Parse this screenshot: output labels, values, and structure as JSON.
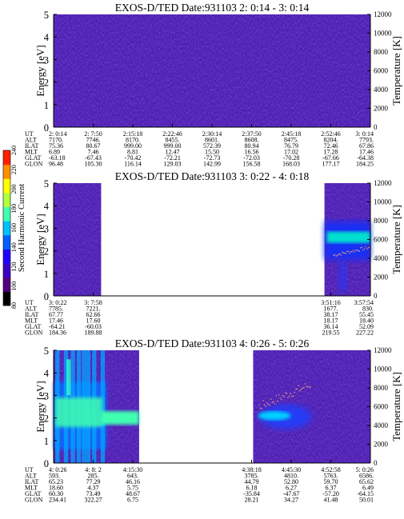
{
  "panels": [
    {
      "title": "EXOS-D/TED   Date:931103  2: 0:14 - 3: 0:14",
      "ylabel_left": "Energy [eV]",
      "ylabel_right": "Temperature [K]",
      "left_ticks": [
        "0",
        "1",
        "2",
        "3",
        "4",
        "5"
      ],
      "right_ticks": [
        "0",
        "2000",
        "4000",
        "6000",
        "8000",
        "10000",
        "12000"
      ],
      "eph_labels": [
        "UT",
        "ALT",
        "ILAT",
        "MLT",
        "GLAT",
        "GLON"
      ],
      "columns": [
        {
          "f": 0.0,
          "vals": [
            "2: 0:14",
            "7170.",
            "75.36",
            "6.89",
            "-63.18",
            "96.48"
          ]
        },
        {
          "f": 0.125,
          "vals": [
            "2: 7:50",
            "7746.",
            "80.67",
            "7.46",
            "-67.43",
            "105.30"
          ]
        },
        {
          "f": 0.25,
          "vals": [
            "2:15:18",
            "8170.",
            "999.00",
            "8.81",
            "-70.42",
            "116.14"
          ]
        },
        {
          "f": 0.375,
          "vals": [
            "2:22:46",
            "8455.",
            "999.00",
            "12.47",
            "-72.21",
            "129.03"
          ]
        },
        {
          "f": 0.5,
          "vals": [
            "2:30:14",
            "8601.",
            "572.39",
            "15.50",
            "-72.73",
            "142.99"
          ]
        },
        {
          "f": 0.625,
          "vals": [
            "2:37:50",
            "8608.",
            "80.94",
            "16.56",
            "-72.03",
            "156.58"
          ]
        },
        {
          "f": 0.75,
          "vals": [
            "2:45:18",
            "8475.",
            "76.79",
            "17.02",
            "-70.28",
            "168.03"
          ]
        },
        {
          "f": 0.875,
          "vals": [
            "2:52:46",
            "8204.",
            "72.46",
            "17.28",
            "-67.66",
            "177.17"
          ]
        },
        {
          "f": 1.0,
          "vals": [
            "3: 0:14",
            "7793.",
            "67.86",
            "17.46",
            "-64.38",
            "184.25"
          ]
        }
      ],
      "data_segments": [
        {
          "start": 0.0,
          "end": 1.0,
          "style": "background"
        }
      ]
    },
    {
      "title": "EXOS-D/TED   Date:931103  3: 0:22 - 4: 0:18",
      "ylabel_left": "Energy [eV]",
      "ylabel_right": "Temperature [K]",
      "left_ticks": [
        "0",
        "1",
        "2",
        "3",
        "4",
        "5"
      ],
      "right_ticks": [
        "0",
        "2000",
        "4000",
        "6000",
        "8000",
        "10000",
        "12000"
      ],
      "eph_labels": [
        "UT",
        "ALT",
        "ILAT",
        "MLT",
        "GLAT",
        "GLON"
      ],
      "columns": [
        {
          "f": 0.0,
          "vals": [
            "3: 0:22",
            "7785.",
            "67.77",
            "17.46",
            "-64.21",
            "184.36"
          ]
        },
        {
          "f": 0.125,
          "vals": [
            "3: 7:58",
            "7221.",
            "62.66",
            "17.60",
            "-60.03",
            "189.88"
          ]
        },
        {
          "f": 0.875,
          "vals": [
            "3:51:16",
            "1677.",
            "38.17",
            "18.17",
            "36.14",
            "219.55"
          ]
        },
        {
          "f": 1.0,
          "vals": [
            "3:57:54",
            "830.",
            "55.45",
            "18.40",
            "52.09",
            "227.22"
          ]
        }
      ],
      "data_segments": [
        {
          "start": 0.0,
          "end": 0.15,
          "style": "background"
        },
        {
          "start": 0.855,
          "end": 1.0,
          "style": "band"
        }
      ]
    },
    {
      "title": "EXOS-D/TED   Date:931103  4: 0:26 - 5: 0:26",
      "ylabel_left": "Energy [eV]",
      "ylabel_right": "Temperature [K]",
      "left_ticks": [
        "0",
        "1",
        "2",
        "3",
        "4",
        "5"
      ],
      "right_ticks": [
        "0",
        "2000",
        "4000",
        "6000",
        "8000",
        "10000",
        "12000"
      ],
      "eph_labels": [
        "UT",
        "ALT",
        "ILAT",
        "MLT",
        "GLAT",
        "GLON"
      ],
      "columns": [
        {
          "f": 0.0,
          "vals": [
            "4: 0:26",
            "593.",
            "65.23",
            "18.60",
            "60.30",
            "234.41"
          ]
        },
        {
          "f": 0.125,
          "vals": [
            "4: 8: 2",
            "285.",
            "77.29",
            "4.37",
            "73.49",
            "322.27"
          ]
        },
        {
          "f": 0.25,
          "vals": [
            "4:15:30",
            "643.",
            "46.16",
            "5.75",
            "48.67",
            "6.75"
          ]
        },
        {
          "f": 0.625,
          "vals": [
            "4:38:18",
            "3785.",
            "44.79",
            "6.18",
            "-35.84",
            "28.21"
          ]
        },
        {
          "f": 0.75,
          "vals": [
            "4:45:30",
            "4810.",
            "52.80",
            "6.27",
            "-47.67",
            "34.27"
          ]
        },
        {
          "f": 0.875,
          "vals": [
            "4:52:58",
            "5763.",
            "59.70",
            "6.37",
            "-57.20",
            "41.48"
          ]
        },
        {
          "f": 1.0,
          "vals": [
            "5: 0:26",
            "6586.",
            "65.62",
            "6.49",
            "-64.15",
            "50.01"
          ]
        }
      ],
      "data_segments": [
        {
          "start": 0.0,
          "end": 0.27,
          "style": "burst"
        },
        {
          "start": 0.63,
          "end": 1.0,
          "style": "blob"
        }
      ]
    }
  ],
  "colorbar": {
    "label": "Second Harmonic Current",
    "ticks": [
      "80",
      "100",
      "120",
      "140",
      "160",
      "180",
      "200",
      "220",
      "240"
    ],
    "colors": [
      "#000000",
      "#55007f",
      "#3b00c8",
      "#2200ff",
      "#0060ff",
      "#00c0ff",
      "#40ffb0",
      "#b0ff40",
      "#ffff00",
      "#ff9000",
      "#ff2000"
    ]
  },
  "chart_data": [
    {
      "type": "heatmap",
      "title": "EXOS-D/TED   Date:931103  2: 0:14 - 3: 0:14",
      "xlabel": "UT",
      "ylabel": "Energy [eV]",
      "ylabel_right": "Temperature [K]",
      "ylim": [
        0,
        5
      ],
      "ylim_right": [
        0,
        12000
      ],
      "coverage": [
        [
          0.0,
          1.0
        ]
      ],
      "dominant_level": 100
    },
    {
      "type": "heatmap",
      "title": "EXOS-D/TED   Date:931103  3: 0:22 - 4: 0:18",
      "xlabel": "UT",
      "ylabel": "Energy [eV]",
      "ylabel_right": "Temperature [K]",
      "ylim": [
        0,
        5
      ],
      "ylim_right": [
        0,
        12000
      ],
      "coverage": [
        [
          0.0,
          0.15
        ],
        [
          0.855,
          1.0
        ]
      ],
      "bands_eV": [
        [
          2.5,
          2.8
        ]
      ]
    },
    {
      "type": "heatmap",
      "title": "EXOS-D/TED   Date:931103  4: 0:26 - 5: 0:26",
      "xlabel": "UT",
      "ylabel": "Energy [eV]",
      "ylabel_right": "Temperature [K]",
      "ylim": [
        0,
        5
      ],
      "ylim_right": [
        0,
        12000
      ],
      "coverage": [
        [
          0.0,
          0.27
        ],
        [
          0.63,
          1.0
        ]
      ],
      "bands_eV": [
        [
          1.8,
          2.2
        ]
      ]
    }
  ]
}
